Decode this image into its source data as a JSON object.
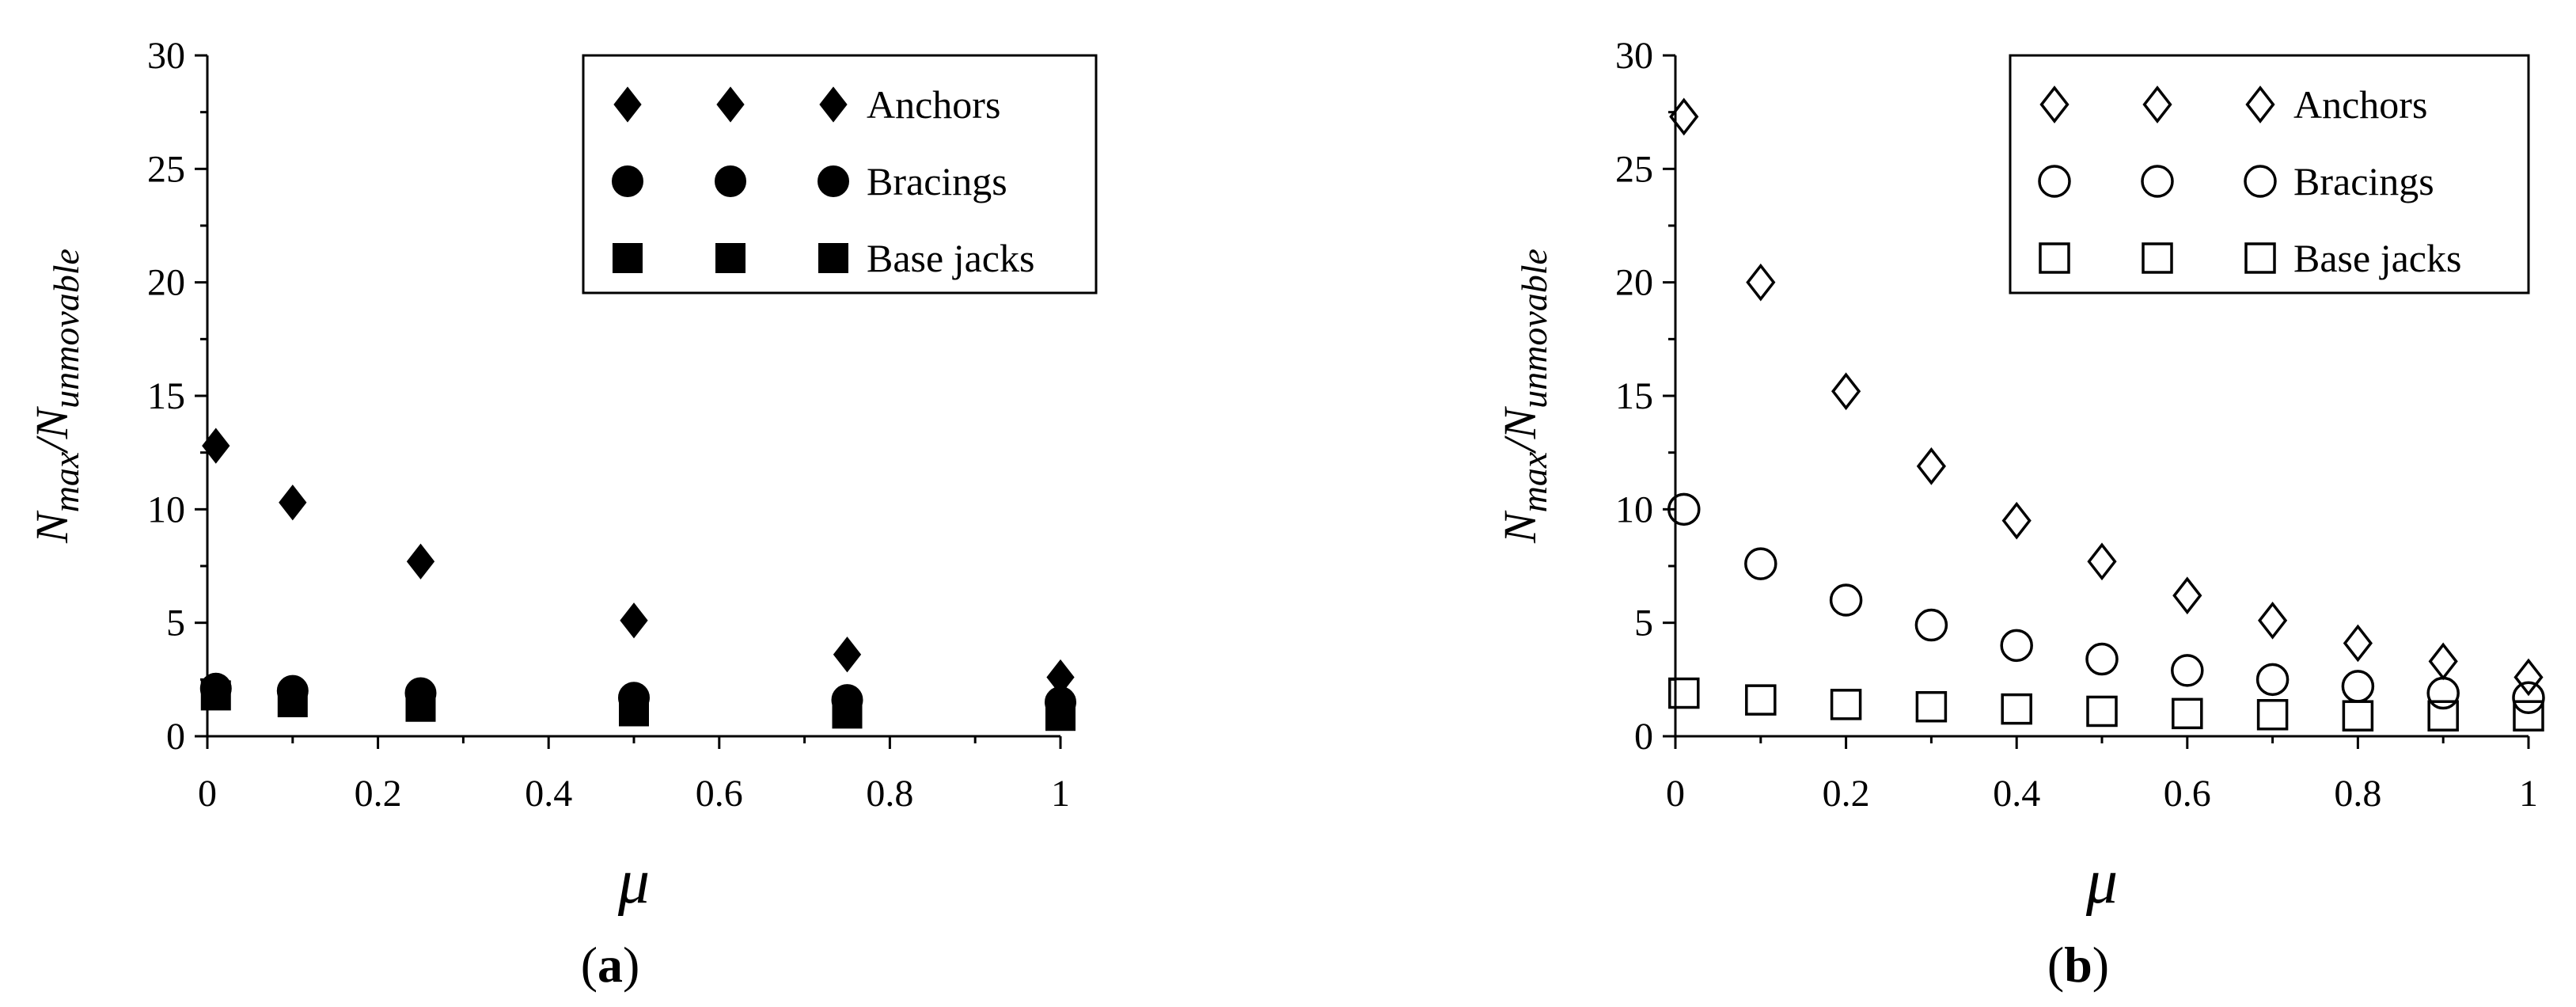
{
  "chart_data": [
    {
      "type": "scatter",
      "panel_label": "(a)",
      "xlabel": "μ",
      "ylabel": {
        "base1": "N",
        "sub1": "max",
        "slash": "/",
        "base2": "N",
        "sub2": "unmovable"
      },
      "xlim": [
        0,
        1
      ],
      "ylim": [
        0,
        30
      ],
      "xticks": [
        0,
        0.2,
        0.4,
        0.6,
        0.8,
        1
      ],
      "xtick_labels": [
        "0",
        "0.2",
        "0.4",
        "0.6",
        "0.8",
        "1"
      ],
      "yticks": [
        0,
        5,
        10,
        15,
        20,
        25,
        30
      ],
      "ytick_labels": [
        "0",
        "5",
        "10",
        "15",
        "20",
        "25",
        "30"
      ],
      "legend_position": "top-right",
      "series": [
        {
          "name": "Anchors",
          "marker": "diamond",
          "filled": true,
          "x": [
            0.01,
            0.1,
            0.25,
            0.5,
            0.75,
            1
          ],
          "y": [
            12.8,
            10.3,
            7.7,
            5.1,
            3.6,
            2.6
          ]
        },
        {
          "name": "Bracings",
          "marker": "circle",
          "filled": true,
          "x": [
            0.01,
            0.1,
            0.25,
            0.5,
            0.75,
            1
          ],
          "y": [
            2.1,
            2.0,
            1.9,
            1.7,
            1.6,
            1.5
          ]
        },
        {
          "name": "Base jacks",
          "marker": "square",
          "filled": true,
          "x": [
            0.01,
            0.1,
            0.25,
            0.5,
            0.75,
            1
          ],
          "y": [
            1.8,
            1.5,
            1.3,
            1.1,
            1.0,
            0.9
          ]
        }
      ]
    },
    {
      "type": "scatter",
      "panel_label": "(b)",
      "xlabel": "μ",
      "ylabel": {
        "base1": "N",
        "sub1": "max",
        "slash": "/",
        "base2": "N",
        "sub2": "unmovable"
      },
      "xlim": [
        0,
        1
      ],
      "ylim": [
        0,
        30
      ],
      "xticks": [
        0,
        0.2,
        0.4,
        0.6,
        0.8,
        1
      ],
      "xtick_labels": [
        "0",
        "0.2",
        "0.4",
        "0.6",
        "0.8",
        "1"
      ],
      "yticks": [
        0,
        5,
        10,
        15,
        20,
        25,
        30
      ],
      "ytick_labels": [
        "0",
        "5",
        "10",
        "15",
        "20",
        "25",
        "30"
      ],
      "legend_position": "top-right",
      "series": [
        {
          "name": "Anchors",
          "marker": "diamond",
          "filled": false,
          "x": [
            0.01,
            0.1,
            0.2,
            0.3,
            0.4,
            0.5,
            0.6,
            0.7,
            0.8,
            0.9,
            1
          ],
          "y": [
            27.3,
            20.0,
            15.2,
            11.9,
            9.5,
            7.7,
            6.2,
            5.1,
            4.1,
            3.3,
            2.6
          ]
        },
        {
          "name": "Bracings",
          "marker": "circle",
          "filled": false,
          "x": [
            0.01,
            0.1,
            0.2,
            0.3,
            0.4,
            0.5,
            0.6,
            0.7,
            0.8,
            0.9,
            1
          ],
          "y": [
            10.0,
            7.6,
            6.0,
            4.9,
            4.0,
            3.4,
            2.9,
            2.5,
            2.2,
            1.9,
            1.7
          ]
        },
        {
          "name": "Base jacks",
          "marker": "square",
          "filled": false,
          "x": [
            0.01,
            0.1,
            0.2,
            0.3,
            0.4,
            0.5,
            0.6,
            0.7,
            0.8,
            0.9,
            1
          ],
          "y": [
            1.9,
            1.6,
            1.4,
            1.3,
            1.2,
            1.1,
            1.0,
            0.95,
            0.9,
            0.9,
            0.9
          ]
        }
      ]
    }
  ]
}
